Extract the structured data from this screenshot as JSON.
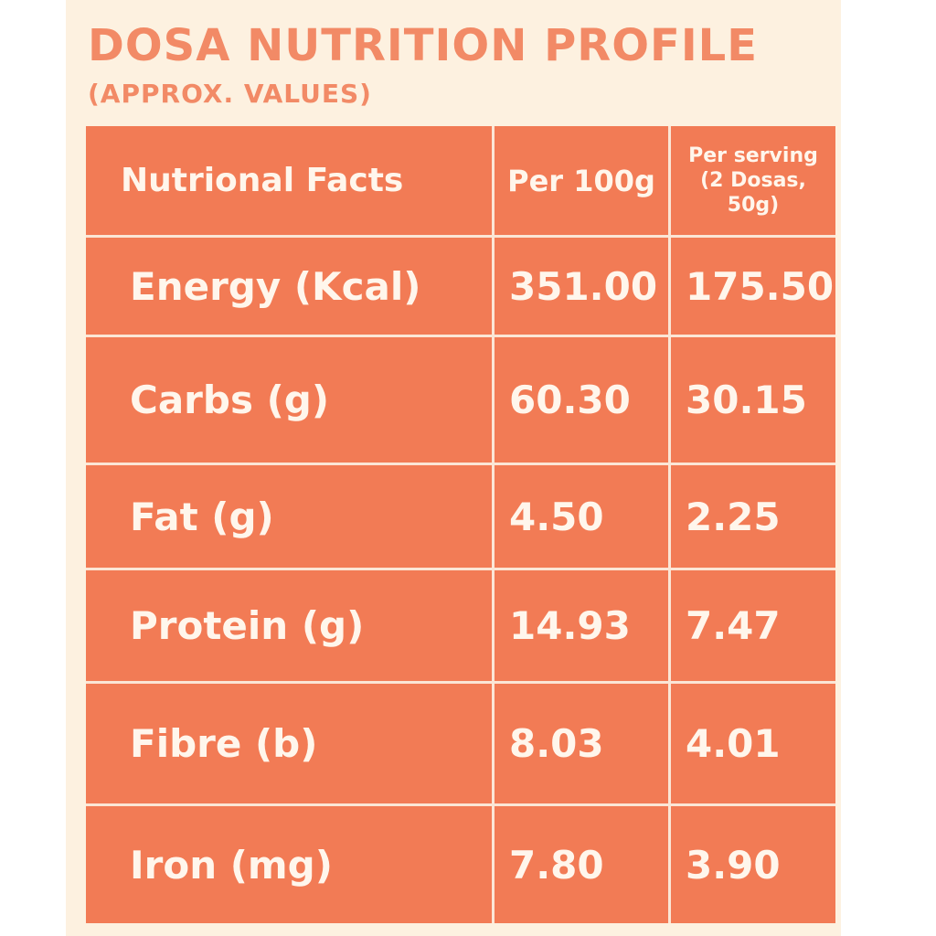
{
  "title": "DOSA NUTRITION PROFILE",
  "subtitle": "(APPROX. VALUES)",
  "table": {
    "headers": {
      "label": "Nutrional Facts",
      "per100g": "Per 100g",
      "perServing": "Per serving (2 Dosas, 50g)"
    },
    "rows": [
      {
        "nutrient": "Energy (Kcal)",
        "per100g": "351.00",
        "perServing": "175.50"
      },
      {
        "nutrient": "Carbs (g)",
        "per100g": "60.30",
        "perServing": "30.15"
      },
      {
        "nutrient": "Fat (g)",
        "per100g": "4.50",
        "perServing": "2.25"
      },
      {
        "nutrient": "Protein (g)",
        "per100g": "14.93",
        "perServing": "7.47"
      },
      {
        "nutrient": "Fibre (b)",
        "per100g": "8.03",
        "perServing": "4.01"
      },
      {
        "nutrient": "Iron (mg)",
        "per100g": "7.80",
        "perServing": "3.90"
      }
    ]
  },
  "colors": {
    "accent": "#f28a66",
    "table_bg": "#f27b55",
    "background": "#fdf1e0",
    "cell_text": "#fff6ec"
  }
}
